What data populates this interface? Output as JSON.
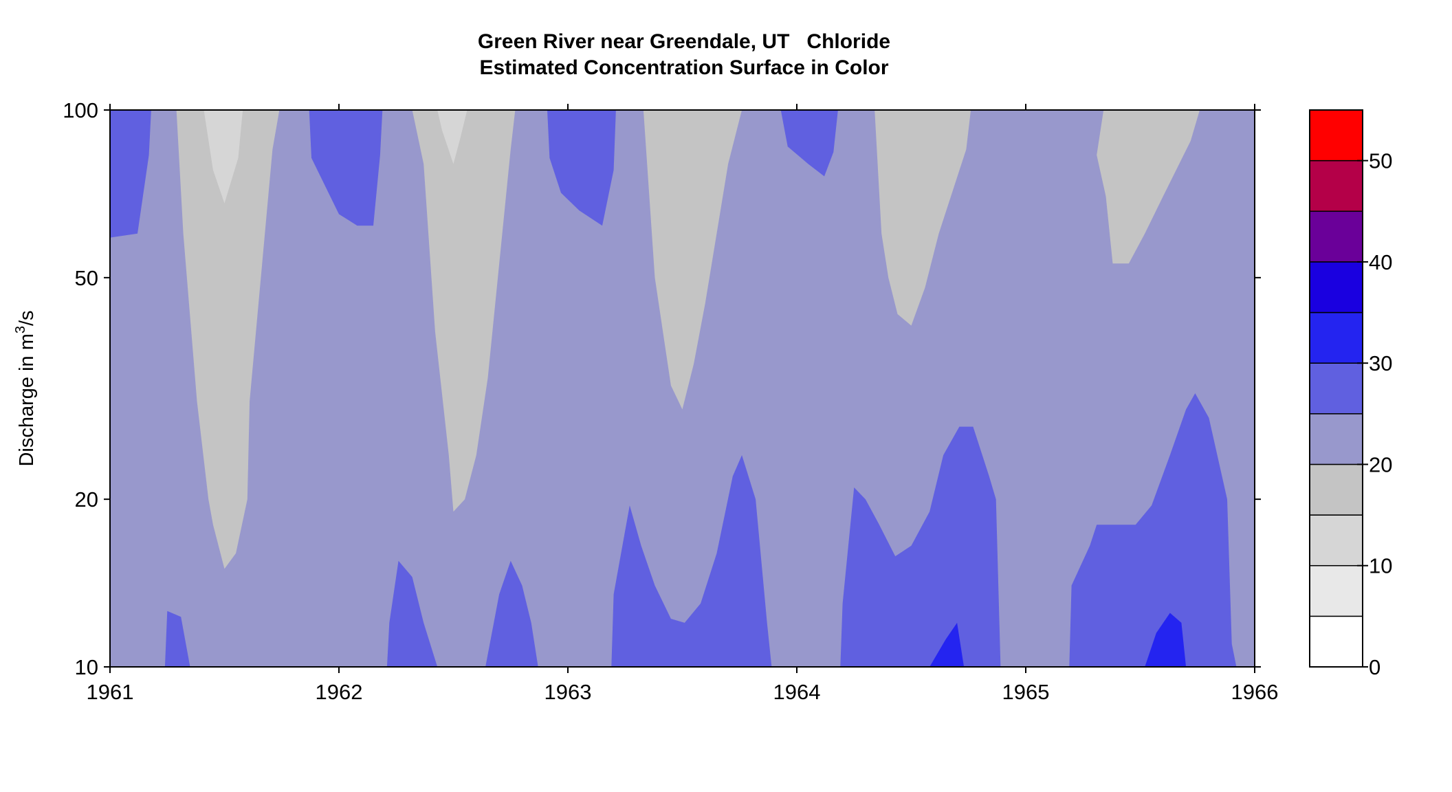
{
  "chart_data": {
    "type": "heatmap",
    "title": "Green River near Greendale, UT   Chloride",
    "subtitle": "Estimated Concentration Surface in Color",
    "xlabel": "",
    "ylabel": "Discharge in m³/s",
    "ylabel_parts": {
      "base": "Discharge in m",
      "superscript": "3",
      "tail": "/s"
    },
    "x_range": [
      1961,
      1966
    ],
    "y_range": [
      10,
      100
    ],
    "y_scale": "log",
    "x_ticks": [
      "1961",
      "1962",
      "1963",
      "1964",
      "1965",
      "1966"
    ],
    "y_ticks": [
      {
        "value": 10,
        "label": "10"
      },
      {
        "value": 20,
        "label": "20"
      },
      {
        "value": 50,
        "label": "50"
      },
      {
        "value": 100,
        "label": "100"
      }
    ],
    "grid": false,
    "colorbar": {
      "placement": "right",
      "levels": [
        0,
        5,
        10,
        15,
        20,
        25,
        30,
        35,
        40,
        45,
        50,
        55
      ],
      "colors": [
        "#ffffff",
        "#e8e8e8",
        "#d6d6d6",
        "#c4c4c4",
        "#9898cc",
        "#6060e0",
        "#2424f0",
        "#1a00e0",
        "#6a0099",
        "#b40048",
        "#ff0000"
      ],
      "tick_labels": [
        {
          "value": 0,
          "label": "0"
        },
        {
          "value": 10,
          "label": "10"
        },
        {
          "value": 20,
          "label": "20"
        },
        {
          "value": 30,
          "label": "30"
        },
        {
          "value": 40,
          "label": "40"
        },
        {
          "value": 50,
          "label": "50"
        }
      ]
    },
    "background_band": "20-25",
    "regions": [
      {
        "band": "25-30",
        "points": [
          [
            1961.0,
            100
          ],
          [
            1961.18,
            100
          ],
          [
            1961.17,
            83
          ],
          [
            1961.12,
            60
          ],
          [
            1961.0,
            59
          ]
        ]
      },
      {
        "band": "15-20",
        "points": [
          [
            1961.29,
            100
          ],
          [
            1961.74,
            100
          ],
          [
            1961.71,
            85
          ],
          [
            1961.61,
            30
          ],
          [
            1961.6,
            20
          ],
          [
            1961.55,
            16
          ],
          [
            1961.5,
            15
          ],
          [
            1961.45,
            18
          ],
          [
            1961.43,
            20
          ],
          [
            1961.38,
            30
          ],
          [
            1961.32,
            60
          ]
        ]
      },
      {
        "band": "10-15",
        "points": [
          [
            1961.41,
            100
          ],
          [
            1961.58,
            100
          ],
          [
            1961.56,
            82
          ],
          [
            1961.5,
            68
          ],
          [
            1961.45,
            78
          ]
        ]
      },
      {
        "band": "25-30",
        "points": [
          [
            1961.24,
            10
          ],
          [
            1961.35,
            10
          ],
          [
            1961.31,
            12.3
          ],
          [
            1961.25,
            12.6
          ]
        ]
      },
      {
        "band": "25-30",
        "points": [
          [
            1961.87,
            100
          ],
          [
            1962.19,
            100
          ],
          [
            1962.18,
            83
          ],
          [
            1962.15,
            62
          ],
          [
            1962.08,
            62
          ],
          [
            1962.0,
            65
          ],
          [
            1961.88,
            82
          ]
        ]
      },
      {
        "band": "15-20",
        "points": [
          [
            1962.32,
            100
          ],
          [
            1962.77,
            100
          ],
          [
            1962.75,
            85
          ],
          [
            1962.65,
            33
          ],
          [
            1962.6,
            24
          ],
          [
            1962.55,
            20
          ],
          [
            1962.5,
            19
          ],
          [
            1962.48,
            24
          ],
          [
            1962.42,
            40
          ],
          [
            1962.37,
            80
          ]
        ]
      },
      {
        "band": "10-15",
        "points": [
          [
            1962.43,
            100
          ],
          [
            1962.56,
            100
          ],
          [
            1962.53,
            89
          ],
          [
            1962.5,
            80
          ],
          [
            1962.45,
            92
          ]
        ]
      },
      {
        "band": "25-30",
        "points": [
          [
            1962.21,
            10
          ],
          [
            1962.43,
            10
          ],
          [
            1962.37,
            12
          ],
          [
            1962.32,
            14.5
          ],
          [
            1962.26,
            15.5
          ],
          [
            1962.22,
            12
          ]
        ]
      },
      {
        "band": "25-30",
        "points": [
          [
            1962.64,
            10
          ],
          [
            1962.87,
            10
          ],
          [
            1962.84,
            12
          ],
          [
            1962.8,
            14
          ],
          [
            1962.75,
            15.5
          ],
          [
            1962.7,
            13.5
          ]
        ]
      },
      {
        "band": "25-30",
        "points": [
          [
            1962.91,
            100
          ],
          [
            1963.21,
            100
          ],
          [
            1963.2,
            78
          ],
          [
            1963.15,
            62
          ],
          [
            1963.05,
            66
          ],
          [
            1962.97,
            71
          ],
          [
            1962.92,
            82
          ]
        ]
      },
      {
        "band": "15-20",
        "points": [
          [
            1963.33,
            100
          ],
          [
            1963.76,
            100
          ],
          [
            1963.7,
            80
          ],
          [
            1963.6,
            45
          ],
          [
            1963.55,
            35
          ],
          [
            1963.5,
            29
          ],
          [
            1963.45,
            32
          ],
          [
            1963.38,
            50
          ]
        ]
      },
      {
        "band": "25-30",
        "points": [
          [
            1963.19,
            10
          ],
          [
            1963.89,
            10
          ],
          [
            1963.87,
            12
          ],
          [
            1963.82,
            20
          ],
          [
            1963.76,
            24
          ],
          [
            1963.72,
            22
          ],
          [
            1963.65,
            16
          ],
          [
            1963.58,
            13
          ],
          [
            1963.51,
            12
          ],
          [
            1963.45,
            12.2
          ],
          [
            1963.38,
            14
          ],
          [
            1963.32,
            16.5
          ],
          [
            1963.27,
            19.5
          ],
          [
            1963.2,
            13.5
          ]
        ]
      },
      {
        "band": "25-30",
        "points": [
          [
            1963.93,
            100
          ],
          [
            1964.18,
            100
          ],
          [
            1964.16,
            84
          ],
          [
            1964.12,
            76
          ],
          [
            1964.05,
            80
          ],
          [
            1963.96,
            86
          ]
        ]
      },
      {
        "band": "15-20",
        "points": [
          [
            1964.34,
            100
          ],
          [
            1964.76,
            100
          ],
          [
            1964.74,
            85
          ],
          [
            1964.62,
            60
          ],
          [
            1964.56,
            48
          ],
          [
            1964.5,
            41
          ],
          [
            1964.44,
            43
          ],
          [
            1964.4,
            50
          ],
          [
            1964.37,
            60
          ]
        ]
      },
      {
        "band": "25-30",
        "points": [
          [
            1964.19,
            10
          ],
          [
            1964.89,
            10
          ],
          [
            1964.87,
            20
          ],
          [
            1964.84,
            22
          ],
          [
            1964.77,
            27
          ],
          [
            1964.71,
            27
          ],
          [
            1964.64,
            24
          ],
          [
            1964.58,
            19
          ],
          [
            1964.5,
            16.5
          ],
          [
            1964.43,
            15.8
          ],
          [
            1964.36,
            18
          ],
          [
            1964.3,
            20
          ],
          [
            1964.25,
            21
          ],
          [
            1964.2,
            13
          ]
        ]
      },
      {
        "band": "30-35",
        "points": [
          [
            1964.58,
            10
          ],
          [
            1964.73,
            10
          ],
          [
            1964.7,
            12
          ],
          [
            1964.65,
            11.2
          ]
        ]
      },
      {
        "band": "15-20",
        "points": [
          [
            1965.34,
            100
          ],
          [
            1965.76,
            100
          ],
          [
            1965.72,
            88
          ],
          [
            1965.6,
            70
          ],
          [
            1965.52,
            60
          ],
          [
            1965.45,
            53
          ],
          [
            1965.38,
            53
          ],
          [
            1965.35,
            70
          ],
          [
            1965.31,
            83
          ]
        ]
      },
      {
        "band": "25-30",
        "points": [
          [
            1965.19,
            10
          ],
          [
            1965.92,
            10
          ],
          [
            1965.9,
            11
          ],
          [
            1965.88,
            20
          ],
          [
            1965.8,
            28
          ],
          [
            1965.74,
            31
          ],
          [
            1965.7,
            29
          ],
          [
            1965.63,
            24
          ],
          [
            1965.55,
            19.5
          ],
          [
            1965.48,
            18
          ],
          [
            1965.4,
            18
          ],
          [
            1965.31,
            18
          ],
          [
            1965.28,
            16.5
          ],
          [
            1965.2,
            14
          ]
        ]
      },
      {
        "band": "30-35",
        "points": [
          [
            1965.52,
            10
          ],
          [
            1965.7,
            10
          ],
          [
            1965.68,
            12
          ],
          [
            1965.63,
            12.5
          ],
          [
            1965.57,
            11.5
          ]
        ]
      }
    ]
  }
}
